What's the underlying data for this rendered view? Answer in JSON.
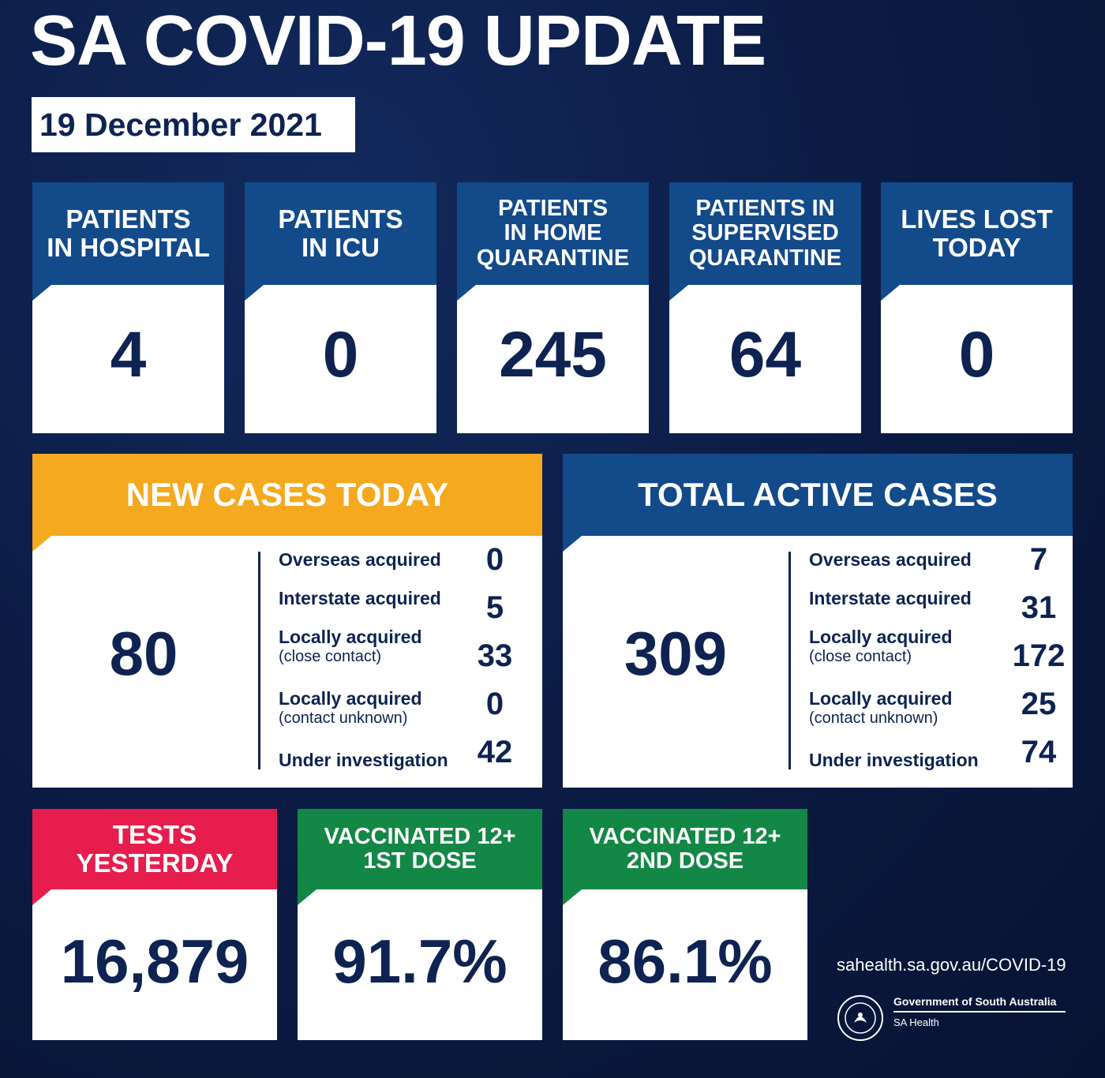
{
  "title": "SA COVID-19 UPDATE",
  "date": "19 December 2021",
  "stat_cards": [
    {
      "label": "PATIENTS\nIN HOSPITAL",
      "value": "4"
    },
    {
      "label": "PATIENTS\nIN ICU",
      "value": "0"
    },
    {
      "label": "PATIENTS\nIN HOME\nQUARANTINE",
      "value": "245"
    },
    {
      "label": "PATIENTS IN\nSUPERVISED\nQUARANTINE",
      "value": "64"
    },
    {
      "label": "LIVES LOST\nTODAY",
      "value": "0"
    }
  ],
  "new_cases": {
    "label": "NEW CASES TODAY",
    "total": "80",
    "rows": [
      {
        "label": "Overseas acquired",
        "sub": "",
        "value": "0"
      },
      {
        "label": "Interstate acquired",
        "sub": "",
        "value": "5"
      },
      {
        "label": "Locally acquired",
        "sub": "(close contact)",
        "value": "33"
      },
      {
        "label": "Locally acquired",
        "sub": "(contact unknown)",
        "value": "0"
      },
      {
        "label": "Under investigation",
        "sub": "",
        "value": "42"
      }
    ]
  },
  "active_cases": {
    "label": "TOTAL ACTIVE CASES",
    "total": "309",
    "rows": [
      {
        "label": "Overseas acquired",
        "sub": "",
        "value": "7"
      },
      {
        "label": "Interstate acquired",
        "sub": "",
        "value": "31"
      },
      {
        "label": "Locally acquired",
        "sub": "(close contact)",
        "value": "172"
      },
      {
        "label": "Locally acquired",
        "sub": "(contact unknown)",
        "value": "25"
      },
      {
        "label": "Under investigation",
        "sub": "",
        "value": "74"
      }
    ]
  },
  "bottom_cards": [
    {
      "label": "TESTS\nYESTERDAY",
      "value": "16,879"
    },
    {
      "label": "VACCINATED 12+\n1ST DOSE",
      "value": "91.7%"
    },
    {
      "label": "VACCINATED 12+\n2ND DOSE",
      "value": "86.1%"
    }
  ],
  "footer": {
    "url": "sahealth.sa.gov.au/COVID-19",
    "gov_line1": "Government of South Australia",
    "gov_line2": "SA Health",
    "seal_icon": "sa-government-seal-icon"
  },
  "colors": {
    "background": "#0c1c45",
    "blue": "#124a8a",
    "orange": "#f5a91f",
    "red": "#e61d4d",
    "green": "#138745",
    "text_dark": "#0e2352"
  }
}
